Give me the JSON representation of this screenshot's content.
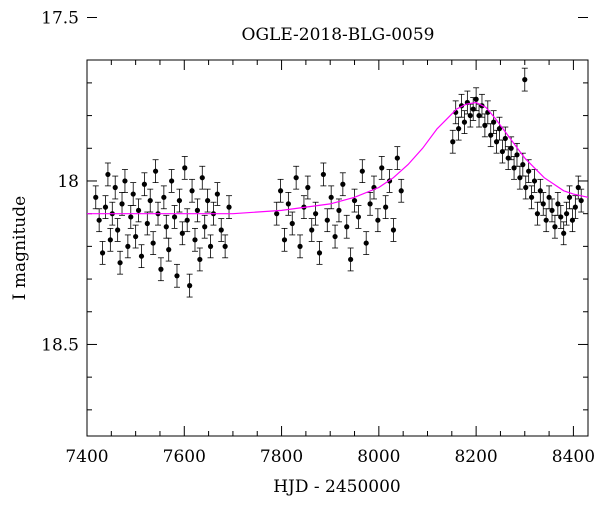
{
  "chart_data": {
    "type": "scatter",
    "title": "OGLE-2018-BLG-0059",
    "xlabel": "HJD - 2450000",
    "ylabel": "I magnitude",
    "xlim": [
      7400,
      8430
    ],
    "ylim": [
      18.78,
      17.63
    ],
    "y_inverted": true,
    "grid": false,
    "legend": "none",
    "x_ticks": [
      7400,
      7600,
      7800,
      8000,
      8200,
      8400
    ],
    "x_tick_labels": [
      "7400",
      "7600",
      "7800",
      "8000",
      "8200",
      "8400"
    ],
    "y_ticks": [
      17.5,
      18,
      18.5
    ],
    "y_tick_labels": [
      "17.5",
      "18",
      "18.5"
    ],
    "colors": {
      "points": "#000000",
      "model": "#ff00ff"
    },
    "series": [
      {
        "kind": "data-with-errorbars",
        "x": [
          7418,
          7425,
          7432,
          7438,
          7443,
          7448,
          7452,
          7458,
          7463,
          7468,
          7472,
          7478,
          7484,
          7490,
          7495,
          7500,
          7506,
          7512,
          7518,
          7524,
          7530,
          7536,
          7541,
          7546,
          7552,
          7558,
          7563,
          7568,
          7574,
          7580,
          7585,
          7590,
          7596,
          7601,
          7606,
          7611,
          7616,
          7622,
          7627,
          7632,
          7637,
          7642,
          7648,
          7654,
          7660,
          7668,
          7676,
          7684,
          7692,
          7790,
          7798,
          7806,
          7814,
          7822,
          7830,
          7838,
          7846,
          7854,
          7862,
          7870,
          7878,
          7886,
          7894,
          7902,
          7910,
          7918,
          7926,
          7934,
          7942,
          7950,
          7958,
          7966,
          7974,
          7982,
          7990,
          7998,
          8006,
          8014,
          8022,
          8030,
          8038,
          8046,
          8152,
          8158,
          8164,
          8170,
          8176,
          8182,
          8188,
          8194,
          8200,
          8206,
          8212,
          8218,
          8224,
          8230,
          8236,
          8242,
          8248,
          8254,
          8260,
          8266,
          8272,
          8278,
          8284,
          8290,
          8296,
          8302,
          8308,
          8314,
          8320,
          8326,
          8332,
          8338,
          8344,
          8350,
          8356,
          8362,
          8368,
          8374,
          8380,
          8386,
          8392,
          8398,
          8404,
          8410,
          8416,
          8300
        ],
        "y": [
          18.05,
          18.12,
          18.22,
          18.08,
          17.98,
          18.18,
          18.1,
          18.02,
          18.15,
          18.25,
          18.07,
          18.0,
          18.2,
          18.11,
          18.04,
          18.17,
          18.09,
          18.23,
          18.01,
          18.13,
          18.06,
          18.19,
          17.97,
          18.1,
          18.27,
          18.05,
          18.14,
          18.21,
          18.0,
          18.11,
          18.29,
          18.06,
          18.16,
          17.96,
          18.12,
          18.32,
          18.03,
          18.18,
          18.09,
          18.24,
          17.99,
          18.14,
          18.06,
          18.2,
          18.1,
          18.04,
          18.15,
          18.2,
          18.08,
          18.1,
          18.03,
          18.18,
          18.07,
          18.13,
          17.99,
          18.2,
          18.08,
          18.02,
          18.15,
          18.1,
          18.22,
          17.98,
          18.12,
          18.05,
          18.17,
          18.09,
          18.01,
          18.14,
          18.24,
          18.06,
          18.11,
          17.97,
          18.19,
          18.07,
          18.02,
          18.12,
          17.96,
          18.08,
          18.0,
          18.15,
          17.93,
          18.03,
          17.88,
          17.79,
          17.84,
          17.77,
          17.82,
          17.76,
          17.8,
          17.78,
          17.75,
          17.8,
          17.77,
          17.83,
          17.79,
          17.86,
          17.82,
          17.88,
          17.84,
          17.91,
          17.87,
          17.93,
          17.9,
          17.96,
          17.92,
          17.99,
          17.95,
          18.02,
          17.97,
          18.05,
          18.0,
          18.1,
          18.03,
          18.07,
          18.12,
          18.05,
          18.09,
          18.14,
          18.07,
          18.11,
          18.16,
          18.1,
          18.05,
          18.12,
          18.08,
          18.02,
          18.06,
          17.69
        ],
        "yerr": 0.035
      },
      {
        "kind": "model-curve",
        "x": [
          7400,
          7500,
          7600,
          7700,
          7800,
          7850,
          7900,
          7950,
          8000,
          8030,
          8060,
          8090,
          8120,
          8140,
          8160,
          8180,
          8200,
          8220,
          8240,
          8260,
          8280,
          8300,
          8320,
          8340,
          8360,
          8380,
          8400,
          8430
        ],
        "y": [
          18.1,
          18.1,
          18.1,
          18.1,
          18.09,
          18.08,
          18.07,
          18.05,
          18.02,
          17.99,
          17.95,
          17.9,
          17.84,
          17.81,
          17.78,
          17.765,
          17.76,
          17.775,
          17.81,
          17.85,
          17.89,
          17.93,
          17.96,
          17.99,
          18.01,
          18.03,
          18.04,
          18.05
        ]
      }
    ]
  }
}
